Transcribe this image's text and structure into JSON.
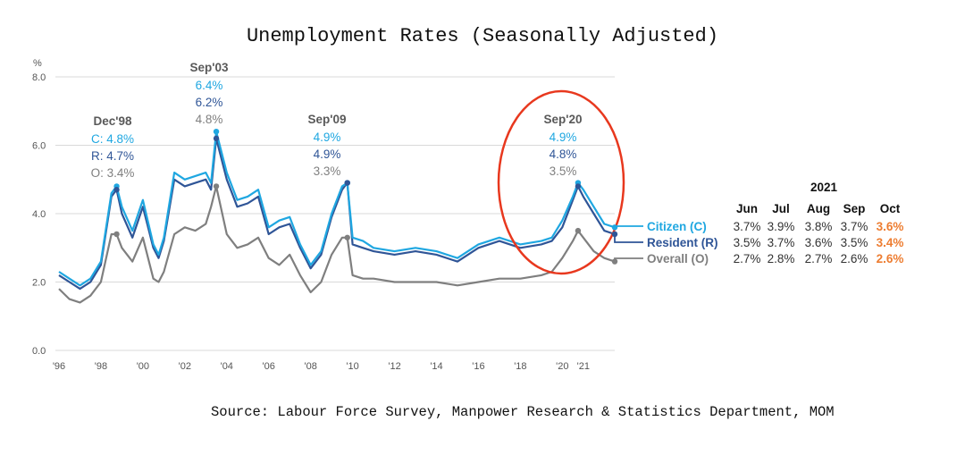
{
  "chart_data": {
    "type": "line",
    "title": "Unemployment Rates (Seasonally Adjusted)",
    "ylabel": "%",
    "ylim": [
      0,
      8
    ],
    "yticks": [
      "0.0",
      "2.0",
      "4.0",
      "6.0",
      "8.0"
    ],
    "xtick_labels": [
      "'96",
      "'98",
      "'00",
      "'02",
      "'04",
      "'06",
      "'08",
      "'10",
      "'12",
      "'14",
      "'16",
      "'18",
      "'20",
      "'21"
    ],
    "x_years": [
      1996,
      1998,
      2000,
      2002,
      2004,
      2006,
      2008,
      2010,
      2012,
      2014,
      2016,
      2018,
      2020,
      2021
    ],
    "series": [
      {
        "name": "Overall (O)",
        "color": "#7F7F7F",
        "x": [
          1996,
          1996.5,
          1997,
          1997.5,
          1998,
          1998.5,
          1998.75,
          1999,
          1999.5,
          2000,
          2000.5,
          2000.75,
          2001,
          2001.5,
          2002,
          2002.5,
          2003,
          2003.25,
          2003.5,
          2004,
          2004.5,
          2005,
          2005.5,
          2006,
          2006.5,
          2007,
          2007.5,
          2008,
          2008.5,
          2009,
          2009.5,
          2009.75,
          2010,
          2010.5,
          2011,
          2012,
          2013,
          2014,
          2015,
          2016,
          2017,
          2018,
          2019,
          2019.5,
          2020,
          2020.5,
          2020.75,
          2021,
          2021.5,
          2022,
          2022.5
        ],
        "values": [
          1.8,
          1.5,
          1.4,
          1.6,
          2.0,
          3.4,
          3.4,
          3.0,
          2.6,
          3.3,
          2.1,
          2.0,
          2.3,
          3.4,
          3.6,
          3.5,
          3.7,
          4.2,
          4.8,
          3.4,
          3.0,
          3.1,
          3.3,
          2.7,
          2.5,
          2.8,
          2.2,
          1.7,
          2.0,
          2.8,
          3.3,
          3.3,
          2.2,
          2.1,
          2.1,
          2.0,
          2.0,
          2.0,
          1.9,
          2.0,
          2.1,
          2.1,
          2.2,
          2.3,
          2.7,
          3.2,
          3.5,
          3.3,
          2.9,
          2.7,
          2.6
        ]
      },
      {
        "name": "Resident (R)",
        "color": "#2F5597",
        "x": [
          1996,
          1996.5,
          1997,
          1997.5,
          1998,
          1998.5,
          1998.75,
          1999,
          1999.5,
          2000,
          2000.5,
          2000.75,
          2001,
          2001.5,
          2002,
          2002.5,
          2003,
          2003.25,
          2003.5,
          2004,
          2004.5,
          2005,
          2005.5,
          2006,
          2006.5,
          2007,
          2007.5,
          2008,
          2008.5,
          2009,
          2009.5,
          2009.75,
          2010,
          2010.5,
          2011,
          2012,
          2013,
          2014,
          2015,
          2016,
          2017,
          2018,
          2019,
          2019.5,
          2020,
          2020.5,
          2020.75,
          2021,
          2021.5,
          2022,
          2022.5
        ],
        "values": [
          2.2,
          2.0,
          1.8,
          2.0,
          2.5,
          4.5,
          4.7,
          4.0,
          3.3,
          4.2,
          3.0,
          2.7,
          3.2,
          5.0,
          4.8,
          4.9,
          5.0,
          4.7,
          6.2,
          5.0,
          4.2,
          4.3,
          4.5,
          3.4,
          3.6,
          3.7,
          3.0,
          2.4,
          2.8,
          3.9,
          4.7,
          4.9,
          3.1,
          3.0,
          2.9,
          2.8,
          2.9,
          2.8,
          2.6,
          3.0,
          3.2,
          3.0,
          3.1,
          3.2,
          3.6,
          4.4,
          4.8,
          4.5,
          4.0,
          3.5,
          3.4
        ]
      },
      {
        "name": "Citizen (C)",
        "color": "#1FA7E1",
        "x": [
          1996,
          1996.5,
          1997,
          1997.5,
          1998,
          1998.5,
          1998.75,
          1999,
          1999.5,
          2000,
          2000.5,
          2000.75,
          2001,
          2001.5,
          2002,
          2002.5,
          2003,
          2003.25,
          2003.5,
          2004,
          2004.5,
          2005,
          2005.5,
          2006,
          2006.5,
          2007,
          2007.5,
          2008,
          2008.5,
          2009,
          2009.5,
          2009.75,
          2010,
          2010.5,
          2011,
          2012,
          2013,
          2014,
          2015,
          2016,
          2017,
          2018,
          2019,
          2019.5,
          2020,
          2020.5,
          2020.75,
          2021,
          2021.5,
          2022,
          2022.5
        ],
        "values": [
          2.3,
          2.1,
          1.9,
          2.1,
          2.6,
          4.6,
          4.8,
          4.2,
          3.5,
          4.4,
          3.1,
          2.8,
          3.3,
          5.2,
          5.0,
          5.1,
          5.2,
          4.9,
          6.4,
          5.2,
          4.4,
          4.5,
          4.7,
          3.6,
          3.8,
          3.9,
          3.1,
          2.5,
          2.9,
          4.0,
          4.8,
          4.9,
          3.3,
          3.2,
          3.0,
          2.9,
          3.0,
          2.9,
          2.7,
          3.1,
          3.3,
          3.1,
          3.2,
          3.3,
          3.8,
          4.5,
          4.9,
          4.7,
          4.2,
          3.7,
          3.6
        ]
      }
    ],
    "annotations": [
      {
        "label": "Dec'98",
        "c": "C: 4.8%",
        "r": "R: 4.7%",
        "o": "O: 3.4%"
      },
      {
        "label": "Sep'03",
        "c": "6.4%",
        "r": "6.2%",
        "o": "4.8%"
      },
      {
        "label": "Sep'09",
        "c": "4.9%",
        "r": "4.9%",
        "o": "3.3%"
      },
      {
        "label": "Sep'20",
        "c": "4.9%",
        "r": "4.8%",
        "o": "3.5%"
      }
    ],
    "legend_labels": [
      "Citizen (C)",
      "Resident (R)",
      "Overall (O)"
    ],
    "table": {
      "year": "2021",
      "months": [
        "Jun",
        "Jul",
        "Aug",
        "Sep",
        "Oct"
      ],
      "rows": [
        [
          "3.7%",
          "3.9%",
          "3.8%",
          "3.7%",
          "3.6%"
        ],
        [
          "3.5%",
          "3.7%",
          "3.6%",
          "3.5%",
          "3.4%"
        ],
        [
          "2.7%",
          "2.8%",
          "2.7%",
          "2.6%",
          "2.6%"
        ]
      ]
    },
    "highlight_color": "#ED7D31",
    "circle_color": "#E8381E",
    "grid": true
  },
  "source": "Source: Labour Force Survey, Manpower Research & Statistics Department, MOM"
}
